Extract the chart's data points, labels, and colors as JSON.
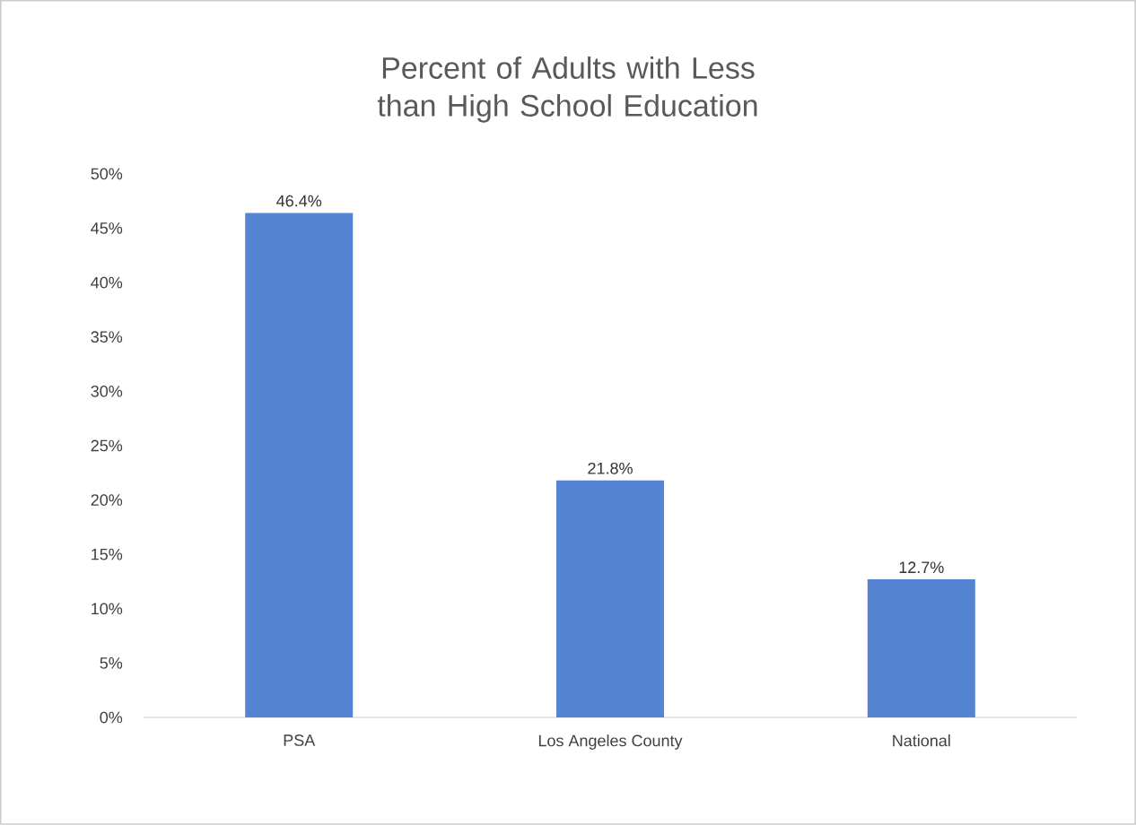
{
  "chart_data": {
    "type": "bar",
    "title": "Percent of Adults with Less than High School Education",
    "categories": [
      "PSA",
      "Los Angeles County",
      "National"
    ],
    "values": [
      46.4,
      21.8,
      12.7
    ],
    "value_labels": [
      "46.4%",
      "21.8%",
      "12.7%"
    ],
    "color": "#5585d2",
    "ylim": [
      0,
      50
    ],
    "yticks": [
      {
        "value": 0,
        "label": "0%"
      },
      {
        "value": 5,
        "label": "5%"
      },
      {
        "value": 10,
        "label": "10%"
      },
      {
        "value": 15,
        "label": "15%"
      },
      {
        "value": 20,
        "label": "20%"
      },
      {
        "value": 25,
        "label": "25%"
      },
      {
        "value": 30,
        "label": "30%"
      },
      {
        "value": 35,
        "label": "35%"
      },
      {
        "value": 40,
        "label": "40%"
      },
      {
        "value": 45,
        "label": "45%"
      },
      {
        "value": 50,
        "label": "50%"
      }
    ],
    "grid": false
  }
}
